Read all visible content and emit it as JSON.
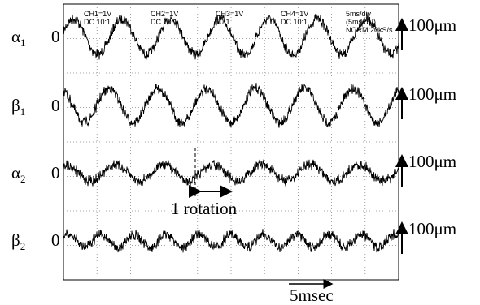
{
  "scope_header": [
    {
      "line1": "CH1=1V",
      "line2": "DC  10:1"
    },
    {
      "line1": "CH2=1V",
      "line2": "DC  10:1"
    },
    {
      "line1": "CH3=1V",
      "line2": "10:1"
    },
    {
      "line1": "CH4=1V",
      "line2": "DC 10:1"
    },
    {
      "line1": "5ms/div",
      "line2": "(5ms/div)",
      "line3": "NORM:20kS/s"
    }
  ],
  "channels": [
    {
      "symbol": "α",
      "sub": "1",
      "zero": "0",
      "scale": "100μm"
    },
    {
      "symbol": "β",
      "sub": "1",
      "zero": "0",
      "scale": "100μm"
    },
    {
      "symbol": "α",
      "sub": "2",
      "zero": "0",
      "scale": "100μm"
    },
    {
      "symbol": "β",
      "sub": "2",
      "zero": "0",
      "scale": "100μm"
    }
  ],
  "annotations": {
    "rotation": "1 rotation",
    "time": "5msec"
  }
}
